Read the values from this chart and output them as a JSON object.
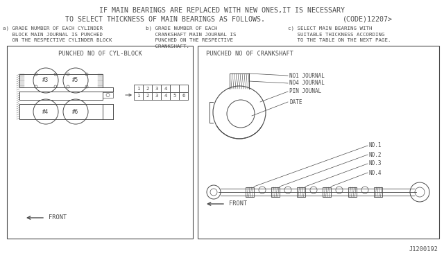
{
  "bg_color": "#ffffff",
  "line_color": "#4a4a4a",
  "title_line1": "IF MAIN BEARINGS ARE REPLACED WITH NEW ONES,IT IS NECESSARY",
  "title_line2": "TO SELECT THICKNESS OF MAIN BEARINGS AS FOLLOWS.",
  "title_code": "(CODE)12207>",
  "sub_a": "a) GRADE NUMBER OF EACH CYLINDER\n   BLOCK MAIN JOURNAL IS PUNCHED\n   ON THE RESPECTIVE CYLINDER BLOCK",
  "sub_b": "b) GRADE NUMBER OF EACH\n   CRANKSHAFT MAIN JOURNAL IS\n   PUNCHED ON THE RESPECTIVE\n   CRANKSHAFT.",
  "sub_c": "c) SELECT MAIN BEARING WITH\n   SUITABLE THICKNESS ACCORDING\n   TO THE TABLE ON THE NEXT PAGE.",
  "box1_title": "PUNCHED NO OF CYL-BLOCK",
  "box2_title": "PUNCHED NO OF CRANKSHAFT",
  "footer": "J1200192",
  "labels_crank": [
    "NO1 JOURNAL",
    "NO4 JOURNAL",
    "PIN JOUNAL",
    "DATE"
  ],
  "labels_shaft": [
    "NO.1",
    "NO.2",
    "NO.3",
    "NO.4"
  ],
  "nums_row1": [
    "1",
    "2",
    "3",
    "4",
    "",
    ""
  ],
  "nums_row2": [
    "1",
    "2",
    "3",
    "4",
    "5",
    "6"
  ]
}
